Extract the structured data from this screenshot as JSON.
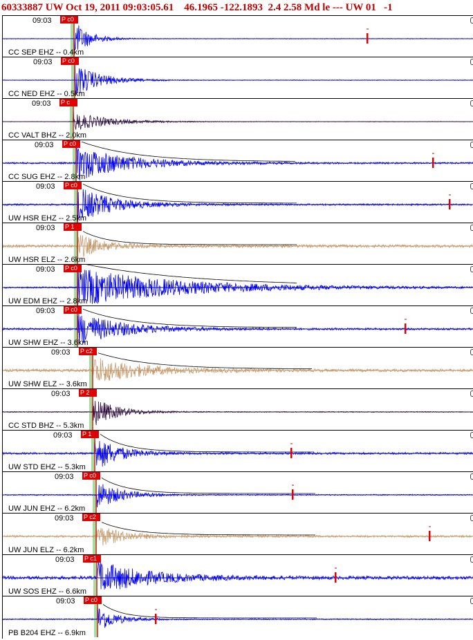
{
  "header": {
    "title": "60333887 UW Oct 19, 2011 09:03:05.61    46.1965 -122.1893  2.4 2.58 Md le --- UW 01   -1"
  },
  "colors": {
    "title": "#c00000",
    "ehz": "#0000ee",
    "bhz": "#2a0b3c",
    "elz": "#c49a6c",
    "pick": "#e00000",
    "coda": "#7a1020",
    "window": "#a8dba0"
  },
  "panels": [
    {
      "time": "09:03",
      "pick": "P c0",
      "label": "CC SEP EHZ -- 0.4km",
      "type": "ehz",
      "start": 103,
      "amp": 26,
      "decay": 0.045,
      "noise": 0.4,
      "coda": false,
      "smark": 527
    },
    {
      "time": "09:03",
      "pick": "P c0",
      "label": "CC NED EHZ -- 0.5km",
      "type": "ehz",
      "start": 104,
      "amp": 25,
      "decay": 0.028,
      "noise": 0.4,
      "coda": false,
      "smark": null
    },
    {
      "time": "09:03",
      "pick": "P c",
      "label": "CC VALT BHZ -- 2.0km",
      "type": "bhz",
      "start": 102,
      "amp": 14,
      "decay": 0.02,
      "noise": 0.3,
      "coda": false,
      "smark": null
    },
    {
      "time": "09:03",
      "pick": "P c0",
      "label": "CC SUG EHZ -- 2.8km",
      "type": "ehz",
      "start": 106,
      "amp": 26,
      "decay": 0.014,
      "noise": 1.2,
      "coda": true,
      "smark": 622
    },
    {
      "time": "09:03",
      "pick": "P c0",
      "label": "UW HSR EHZ -- 2.5km",
      "type": "ehz",
      "start": 108,
      "amp": 26,
      "decay": 0.02,
      "noise": 1.2,
      "coda": true,
      "smark": 646
    },
    {
      "time": "09:03",
      "pick": "P 1",
      "label": "UW HSR ELZ -- 2.6km",
      "type": "elz",
      "start": 108,
      "amp": 18,
      "decay": 0.03,
      "noise": 2,
      "coda": true,
      "smark": null
    },
    {
      "time": "09:03",
      "pick": "P c0",
      "label": "UW EDM EHZ -- 2.8km",
      "type": "ehz",
      "start": 108,
      "amp": 28,
      "decay": 0.007,
      "noise": 1,
      "coda": true,
      "smark": null
    },
    {
      "time": "09:03",
      "pick": "P c0",
      "label": "UW SHW EHZ -- 3.6km",
      "type": "ehz",
      "start": 108,
      "amp": 24,
      "decay": 0.016,
      "noise": 1.4,
      "coda": true,
      "smark": 582
    },
    {
      "time": "09:03",
      "pick": "P c2",
      "label": "UW SHW ELZ -- 3.6km",
      "type": "elz",
      "start": 130,
      "amp": 20,
      "decay": 0.015,
      "noise": 2,
      "coda": true,
      "smark": null
    },
    {
      "time": "09:03",
      "pick": "P 2",
      "label": "CC STD BHZ -- 5.3km",
      "type": "bhz",
      "start": 130,
      "amp": 22,
      "decay": 0.03,
      "noise": 0.6,
      "coda": false,
      "smark": null
    },
    {
      "time": "09:03",
      "pick": "P 1",
      "label": "UW STD EHZ -- 5.3km",
      "type": "ehz",
      "start": 133,
      "amp": 26,
      "decay": 0.03,
      "noise": 1.4,
      "coda": true,
      "smark": 417
    },
    {
      "time": "09:03",
      "pick": "P c0",
      "label": "UW JUN EHZ -- 6.2km",
      "type": "ehz",
      "start": 135,
      "amp": 22,
      "decay": 0.03,
      "noise": 0.8,
      "coda": true,
      "smark": 419
    },
    {
      "time": "09:03",
      "pick": "P c2",
      "label": "UW JUN ELZ -- 6.2km",
      "type": "elz",
      "start": 135,
      "amp": 16,
      "decay": 0.025,
      "noise": 1.4,
      "coda": true,
      "smark": 617
    },
    {
      "time": "09:03",
      "pick": "P c1",
      "label": "UW SOS EHZ -- 6.6km",
      "type": "ehz",
      "start": 136,
      "amp": 24,
      "decay": 0.015,
      "noise": 2.4,
      "coda": false,
      "smark": 481
    },
    {
      "time": "09:03",
      "pick": "P c0",
      "label": "PB B204 EHZ -- 6.9km",
      "type": "ehz",
      "start": 137,
      "amp": 20,
      "decay": 0.04,
      "noise": 0.8,
      "coda": true,
      "smark": 221
    }
  ]
}
